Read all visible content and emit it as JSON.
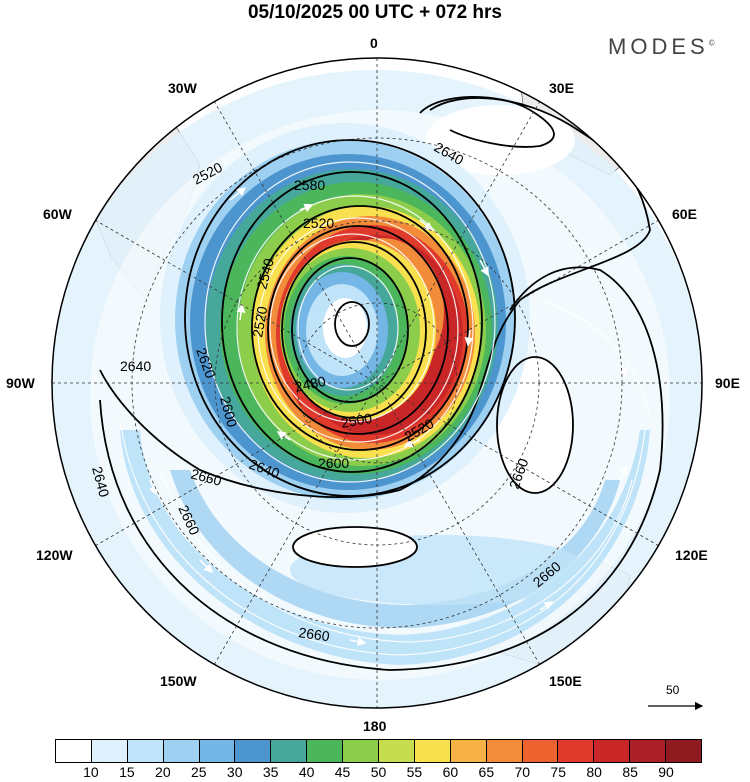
{
  "title": "05/10/2025  00 UTC  + 072 hrs",
  "brand": "MODES",
  "brand_mark": "©",
  "longitude_labels": {
    "deg0": "0",
    "deg30e": "30E",
    "deg60e": "60E",
    "deg90e": "90E",
    "deg120e": "120E",
    "deg150e": "150E",
    "deg180": "180",
    "deg150w": "150W",
    "deg120w": "120W",
    "deg90w": "90W",
    "deg60w": "60W",
    "deg30w": "30W"
  },
  "contour_labels": [
    "2520",
    "2580",
    "2520",
    "2540",
    "2620",
    "2520",
    "2640",
    "2600",
    "2480",
    "2500",
    "2520",
    "2600",
    "2640",
    "2660",
    "2640",
    "2660",
    "2660",
    "2660",
    "2660",
    "2640"
  ],
  "vector_reference": "50",
  "colorbar": {
    "colors": [
      "#ffffff",
      "#dff1fc",
      "#bfe3f8",
      "#9dd0f1",
      "#74b6e6",
      "#4d95cf",
      "#46a79b",
      "#4bb65b",
      "#8ccd4b",
      "#c6dd4f",
      "#f8e04e",
      "#f6b245",
      "#f28c3a",
      "#ec6330",
      "#e03a2c",
      "#c92628",
      "#ab1f26",
      "#8f1a1f"
    ],
    "ticks": [
      "10",
      "15",
      "20",
      "25",
      "30",
      "35",
      "40",
      "45",
      "50",
      "55",
      "60",
      "65",
      "70",
      "75",
      "80",
      "85",
      "90"
    ]
  },
  "colors": {
    "land": "#ececec",
    "coast": "#444444",
    "grid": "#333333"
  }
}
